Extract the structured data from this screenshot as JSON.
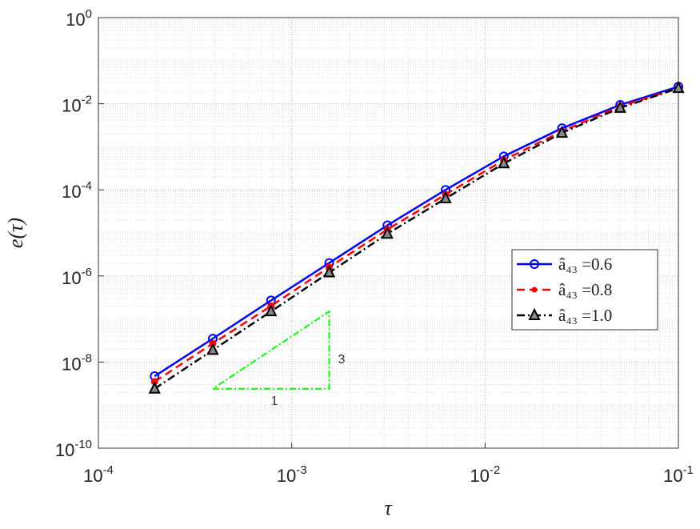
{
  "chart_data": {
    "type": "line",
    "x_label": "τ",
    "y_label": "e(τ)",
    "x": [
      0.0001953125,
      0.000390625,
      0.00078125,
      0.0015625,
      0.003125,
      0.00625,
      0.0125,
      0.025,
      0.05,
      0.1
    ],
    "series": [
      {
        "name": "â₄₃ =0.6",
        "color": "#0000ff",
        "marker": "circle",
        "dash": "solid",
        "values": [
          4.7e-09,
          3.5e-08,
          2.7e-07,
          2e-06,
          1.5e-05,
          0.0001,
          0.0006,
          0.0027,
          0.0094,
          0.025
        ]
      },
      {
        "name": "â₄₃ =0.8",
        "color": "#ff0000",
        "marker": "asterisk",
        "dash": "dashed",
        "values": [
          3.5e-09,
          2.7e-08,
          2e-07,
          1.6e-06,
          1.2e-05,
          7.8e-05,
          0.00049,
          0.0023,
          0.0087,
          0.023
        ]
      },
      {
        "name": "â₄₃ =1.0",
        "color": "#000000",
        "marker": "triangle",
        "dash": "dashdot",
        "values": [
          2.4e-09,
          1.9e-08,
          1.5e-07,
          1.2e-06,
          9.5e-06,
          6.3e-05,
          0.00041,
          0.0021,
          0.008,
          0.023
        ]
      }
    ],
    "slope_triangle": {
      "color": "#00ff00",
      "x": [
        0.000390625,
        0.0015625,
        0.0015625,
        0.000390625
      ],
      "y": [
        2.4e-09,
        2.4e-09,
        1.5e-07,
        2.4e-09
      ]
    },
    "annotations": [
      "1",
      "3"
    ],
    "xscale": "log",
    "yscale": "log",
    "xlim": [
      0.0001,
      0.1
    ],
    "ylim": [
      1e-10,
      1
    ],
    "xticks": [
      {
        "value": 0.0001,
        "label": "10^-4"
      },
      {
        "value": 0.001,
        "label": "10^-3"
      },
      {
        "value": 0.01,
        "label": "10^-2"
      },
      {
        "value": 0.1,
        "label": "10^-1"
      }
    ],
    "yticks": [
      {
        "value": 1e-10,
        "label": "10^-10"
      },
      {
        "value": 1e-08,
        "label": "10^-8"
      },
      {
        "value": 1e-06,
        "label": "10^-6"
      },
      {
        "value": 0.0001,
        "label": "10^-4"
      },
      {
        "value": 0.01,
        "label": "10^-2"
      },
      {
        "value": 1,
        "label": "10^0"
      }
    ],
    "grid": true,
    "minor_grid": true,
    "legend_position": "east"
  }
}
